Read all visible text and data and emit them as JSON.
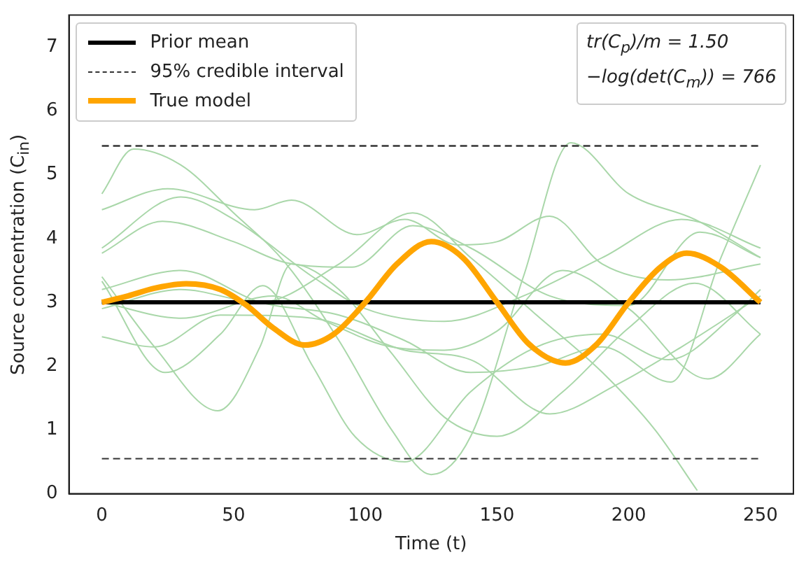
{
  "chart_data": {
    "type": "line",
    "xlabel": "Time (t)",
    "ylabel": "Source concentration (C$_{in}$)",
    "xlim": [
      -12.5,
      262.5
    ],
    "ylim": [
      0,
      7.5
    ],
    "xticks": [
      0,
      50,
      100,
      150,
      200,
      250
    ],
    "yticks": [
      0,
      1,
      2,
      3,
      4,
      5,
      6,
      7
    ],
    "grid": false,
    "legend": "top left",
    "marker": "none",
    "annotations": [
      "tr(C$_{p}$)/m = 1.50",
      "−log(det(C$_{m}$)) = 766"
    ],
    "series": [
      {
        "color": "#a9d7a9",
        "x": [
          0,
          12,
          30,
          50,
          70,
          90,
          110,
          125,
          140,
          160,
          178,
          200,
          225,
          250
        ],
        "values": [
          4.7,
          5.4,
          5.15,
          4.4,
          3.6,
          2.4,
          1.0,
          0.3,
          0.9,
          3.4,
          5.5,
          4.7,
          4.3,
          3.7
        ]
      },
      {
        "color": "#a9d7a9",
        "x": [
          0,
          25,
          58,
          72,
          97,
          115,
          135,
          150,
          170,
          190,
          215,
          250
        ],
        "values": [
          4.45,
          4.78,
          4.45,
          4.6,
          4.06,
          4.3,
          3.9,
          3.95,
          4.35,
          3.6,
          3.35,
          3.6
        ]
      },
      {
        "color": "#a9d7a9",
        "x": [
          0,
          30,
          50,
          80,
          100,
          130,
          160,
          190,
          220,
          250
        ],
        "values": [
          3.85,
          4.65,
          4.3,
          3.4,
          2.9,
          2.7,
          3.1,
          3.7,
          4.3,
          3.85
        ]
      },
      {
        "color": "#a9d7a9",
        "x": [
          0,
          23,
          50,
          70,
          95,
          118,
          140,
          170,
          200,
          227,
          250
        ],
        "values": [
          3.77,
          4.27,
          3.95,
          3.62,
          3.55,
          4.2,
          3.85,
          3.1,
          2.95,
          4.1,
          3.7
        ]
      },
      {
        "color": "#a9d7a9",
        "x": [
          0,
          20,
          44,
          60,
          72,
          90,
          110,
          130,
          150,
          175,
          200,
          225,
          250
        ],
        "values": [
          3.4,
          2.3,
          1.3,
          2.3,
          3.6,
          3.2,
          2.2,
          1.2,
          0.9,
          1.6,
          2.6,
          3.3,
          2.5
        ]
      },
      {
        "color": "#a9d7a9",
        "x": [
          0,
          24,
          45,
          61,
          80,
          96,
          115,
          140,
          165,
          190,
          215,
          240,
          250
        ],
        "values": [
          3.33,
          1.9,
          2.5,
          3.26,
          2.0,
          0.9,
          0.5,
          1.6,
          2.3,
          2.5,
          2.1,
          2.8,
          3.2
        ]
      },
      {
        "color": "#a9d7a9",
        "x": [
          0,
          20,
          45,
          80,
          115,
          140,
          170,
          195,
          220,
          250
        ],
        "values": [
          2.46,
          2.3,
          2.8,
          2.75,
          2.25,
          2.1,
          1.25,
          1.7,
          2.3,
          3.1
        ]
      },
      {
        "color": "#a9d7a9",
        "x": [
          0,
          30,
          65,
          85,
          110,
          130,
          150,
          175,
          200,
          230,
          250
        ],
        "values": [
          3.0,
          2.75,
          3.1,
          2.7,
          2.3,
          2.25,
          2.55,
          3.5,
          2.9,
          1.8,
          2.5
        ]
      },
      {
        "color": "#a9d7a9",
        "x": [
          0,
          30,
          60,
          90,
          118,
          140,
          165,
          190,
          210,
          226
        ],
        "values": [
          2.9,
          3.2,
          3.0,
          3.6,
          4.4,
          3.7,
          2.8,
          1.9,
          1.0,
          0.05
        ]
      },
      {
        "color": "#a9d7a9",
        "x": [
          0,
          30,
          60,
          90,
          115,
          140,
          165,
          190,
          216,
          235,
          250
        ],
        "values": [
          3.2,
          3.5,
          3.0,
          2.8,
          2.4,
          1.9,
          2.0,
          2.3,
          1.75,
          3.7,
          5.15
        ]
      },
      {
        "name": "Prior mean",
        "color": "#000000",
        "x": [
          0,
          250
        ],
        "values": [
          3,
          3
        ]
      },
      {
        "name": "95% credible interval",
        "color": "#333333",
        "line_style": "dashed",
        "x": [
          0,
          250
        ],
        "values": [
          5.45,
          5.45
        ]
      },
      {
        "color": "#333333",
        "line_style": "dashed",
        "x": [
          0,
          250
        ],
        "values": [
          0.55,
          0.55
        ]
      },
      {
        "name": "True model",
        "color": "#ffa500",
        "x": [
          0,
          10,
          20,
          32,
          45,
          55,
          65,
          77,
          88,
          100,
          112,
          125,
          137,
          150,
          162,
          176,
          188,
          200,
          212,
          222,
          235,
          250
        ],
        "values": [
          3.0,
          3.1,
          3.22,
          3.29,
          3.2,
          2.95,
          2.6,
          2.33,
          2.5,
          3.0,
          3.6,
          3.95,
          3.7,
          3.0,
          2.35,
          2.05,
          2.35,
          3.0,
          3.55,
          3.77,
          3.55,
          3.0
        ]
      }
    ]
  }
}
